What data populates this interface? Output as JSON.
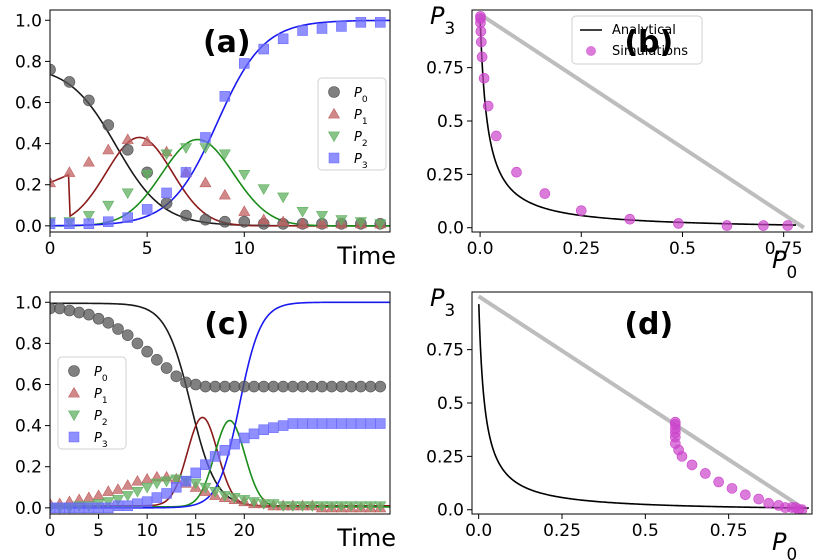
{
  "chart_data": [
    {
      "id": "a",
      "type": "line",
      "panel_label": "(a)",
      "xlabel": "Time",
      "xlim": [
        0,
        17.5
      ],
      "ylim": [
        -0.03,
        1.05
      ],
      "xticks": [
        0,
        5,
        10
      ],
      "xtick_labels": [
        "0",
        "5",
        "10"
      ],
      "yticks": [
        0,
        0.2,
        0.4,
        0.6,
        0.8,
        1.0
      ],
      "ytick_labels": [
        "0.0",
        "0.2",
        "0.4",
        "0.6",
        "0.8",
        "1.0"
      ],
      "legend": {
        "placement": "center-right",
        "entries": [
          "P0",
          "P1",
          "P2",
          "P3"
        ]
      },
      "series": [
        {
          "name": "P0",
          "marker": "circle",
          "color": "#555555",
          "line_color": "#1a1a1a",
          "x": [
            0,
            1,
            2,
            3,
            4,
            5,
            6,
            7,
            8,
            9,
            10,
            11,
            12,
            13,
            14,
            15,
            16,
            17
          ],
          "y": [
            0.76,
            0.7,
            0.61,
            0.49,
            0.37,
            0.26,
            0.11,
            0.05,
            0.03,
            0.02,
            0.02,
            0.01,
            0.01,
            0.01,
            0.01,
            0.01,
            0.01,
            0.01
          ]
        },
        {
          "name": "P1",
          "marker": "triangle-up",
          "color": "#c06060",
          "line_color": "#8b1a1a",
          "x": [
            0,
            1,
            2,
            3,
            4,
            5,
            6,
            7,
            8,
            9,
            10,
            11,
            12,
            13,
            14,
            15,
            16,
            17
          ],
          "y": [
            0.21,
            0.26,
            0.31,
            0.37,
            0.42,
            0.41,
            0.36,
            0.26,
            0.21,
            0.15,
            0.07,
            0.03,
            0.02,
            0.01,
            0.01,
            0.01,
            0.01,
            0.01
          ]
        },
        {
          "name": "P2",
          "marker": "triangle-down",
          "color": "#60b060",
          "line_color": "#1a8c1a",
          "x": [
            0,
            1,
            2,
            3,
            4,
            5,
            6,
            7,
            8,
            9,
            10,
            11,
            12,
            13,
            14,
            15,
            16,
            17
          ],
          "y": [
            0.02,
            0.02,
            0.05,
            0.1,
            0.16,
            0.25,
            0.35,
            0.38,
            0.38,
            0.35,
            0.25,
            0.18,
            0.14,
            0.07,
            0.05,
            0.03,
            0.02,
            0.01
          ]
        },
        {
          "name": "P3",
          "marker": "square",
          "color": "#6a6aff",
          "line_color": "#1a1aee",
          "x": [
            0,
            1,
            2,
            3,
            4,
            5,
            6,
            7,
            8,
            9,
            10,
            11,
            12,
            13,
            14,
            15,
            16,
            17
          ],
          "y": [
            0.01,
            0.01,
            0.01,
            0.02,
            0.04,
            0.08,
            0.16,
            0.26,
            0.43,
            0.63,
            0.79,
            0.86,
            0.91,
            0.95,
            0.96,
            0.97,
            0.99,
            0.99
          ]
        }
      ]
    },
    {
      "id": "b",
      "type": "scatter",
      "panel_label": "(b)",
      "xlabel": "P0",
      "ylabel": "P3",
      "xlim": [
        -0.02,
        0.82
      ],
      "ylim": [
        -0.02,
        1.02
      ],
      "xticks": [
        0,
        0.25,
        0.5,
        0.75
      ],
      "xtick_labels": [
        "0.0",
        "0.25",
        "0.5",
        "0.75"
      ],
      "yticks": [
        0,
        0.25,
        0.5,
        0.75
      ],
      "ytick_labels": [
        "0.0",
        "0.25",
        "0.5",
        "0.75"
      ],
      "legend": {
        "placement": "top-center",
        "entries": [
          "Analytical",
          "Simulations"
        ]
      },
      "reference_line": {
        "x": [
          0,
          0.8
        ],
        "y": [
          1.0,
          0.0
        ],
        "color": "#bdbdbd"
      },
      "series": [
        {
          "name": "Simulations",
          "marker": "circle",
          "color": "#cc44cc",
          "x": [
            0.76,
            0.7,
            0.61,
            0.49,
            0.37,
            0.25,
            0.16,
            0.09,
            0.04,
            0.02,
            0.01,
            0.005,
            0.003,
            0.002,
            0.001,
            0.001,
            0.001
          ],
          "y": [
            0.01,
            0.01,
            0.01,
            0.02,
            0.04,
            0.08,
            0.16,
            0.26,
            0.43,
            0.57,
            0.7,
            0.8,
            0.87,
            0.92,
            0.96,
            0.98,
            0.99
          ]
        }
      ]
    },
    {
      "id": "c",
      "type": "line",
      "panel_label": "(c)",
      "xlabel": "Time",
      "xlim": [
        0,
        35
      ],
      "ylim": [
        -0.03,
        1.05
      ],
      "xticks": [
        0,
        5,
        10,
        15,
        20
      ],
      "xtick_labels": [
        "0",
        "5",
        "10",
        "15",
        "20"
      ],
      "yticks": [
        0,
        0.2,
        0.4,
        0.6,
        0.8,
        1.0
      ],
      "ytick_labels": [
        "0.0",
        "0.2",
        "0.4",
        "0.6",
        "0.8",
        "1.0"
      ],
      "legend": {
        "placement": "center-left",
        "entries": [
          "P0",
          "P1",
          "P2",
          "P3"
        ]
      },
      "series": [
        {
          "name": "P0",
          "marker": "circle",
          "color": "#555555",
          "line_color": "#1a1a1a",
          "x": [
            0,
            1,
            2,
            3,
            4,
            5,
            6,
            7,
            8,
            9,
            10,
            11,
            12,
            13,
            14,
            15,
            16,
            17,
            18,
            19,
            20,
            21,
            22,
            23,
            24,
            25,
            26,
            27,
            28,
            29,
            30,
            31,
            32,
            33,
            34
          ],
          "y": [
            0.97,
            0.97,
            0.96,
            0.95,
            0.94,
            0.92,
            0.9,
            0.87,
            0.84,
            0.8,
            0.76,
            0.72,
            0.68,
            0.64,
            0.61,
            0.6,
            0.59,
            0.59,
            0.59,
            0.59,
            0.59,
            0.59,
            0.59,
            0.59,
            0.59,
            0.59,
            0.59,
            0.59,
            0.59,
            0.59,
            0.59,
            0.59,
            0.59,
            0.59,
            0.59
          ]
        },
        {
          "name": "P1",
          "marker": "triangle-up",
          "color": "#c06060",
          "line_color": "#8b1a1a",
          "x": [
            0,
            1,
            2,
            3,
            4,
            5,
            6,
            7,
            8,
            9,
            10,
            11,
            12,
            13,
            14,
            15,
            16,
            17,
            18,
            19,
            20,
            21,
            22,
            23,
            24,
            25,
            26,
            27,
            28,
            29,
            30,
            31,
            32,
            33,
            34
          ],
          "y": [
            0.02,
            0.02,
            0.03,
            0.04,
            0.05,
            0.06,
            0.08,
            0.09,
            0.11,
            0.13,
            0.14,
            0.15,
            0.15,
            0.14,
            0.12,
            0.1,
            0.08,
            0.06,
            0.05,
            0.04,
            0.03,
            0.02,
            0.02,
            0.01,
            0.01,
            0.01,
            0.01,
            0.01,
            0.0,
            0.0,
            0.0,
            0.0,
            0.0,
            0.0,
            0.0
          ]
        },
        {
          "name": "P2",
          "marker": "triangle-down",
          "color": "#60b060",
          "line_color": "#1a8c1a",
          "x": [
            0,
            1,
            2,
            3,
            4,
            5,
            6,
            7,
            8,
            9,
            10,
            11,
            12,
            13,
            14,
            15,
            16,
            17,
            18,
            19,
            20,
            21,
            22,
            23,
            24,
            25,
            26,
            27,
            28,
            29,
            30,
            31,
            32,
            33,
            34
          ],
          "y": [
            0.0,
            0.0,
            0.0,
            0.01,
            0.01,
            0.02,
            0.03,
            0.04,
            0.06,
            0.08,
            0.1,
            0.12,
            0.13,
            0.14,
            0.13,
            0.12,
            0.1,
            0.08,
            0.06,
            0.05,
            0.04,
            0.03,
            0.02,
            0.02,
            0.01,
            0.01,
            0.01,
            0.01,
            0.01,
            0.01,
            0.01,
            0.01,
            0.01,
            0.01,
            0.01
          ]
        },
        {
          "name": "P3",
          "marker": "square",
          "color": "#6a6aff",
          "line_color": "#1a1aee",
          "x": [
            0,
            1,
            2,
            3,
            4,
            5,
            6,
            7,
            8,
            9,
            10,
            11,
            12,
            13,
            14,
            15,
            16,
            17,
            18,
            19,
            20,
            21,
            22,
            23,
            24,
            25,
            26,
            27,
            28,
            29,
            30,
            31,
            32,
            33,
            34
          ],
          "y": [
            0.0,
            0.0,
            0.0,
            0.0,
            0.0,
            0.0,
            0.0,
            0.01,
            0.01,
            0.02,
            0.03,
            0.05,
            0.07,
            0.1,
            0.13,
            0.17,
            0.21,
            0.25,
            0.28,
            0.31,
            0.34,
            0.36,
            0.38,
            0.39,
            0.4,
            0.41,
            0.41,
            0.41,
            0.41,
            0.41,
            0.41,
            0.41,
            0.41,
            0.41,
            0.41
          ]
        }
      ]
    },
    {
      "id": "d",
      "type": "scatter",
      "panel_label": "(d)",
      "xlabel": "P0",
      "ylabel": "P3",
      "xlim": [
        -0.02,
        1.0
      ],
      "ylim": [
        -0.02,
        1.02
      ],
      "xticks": [
        0,
        0.25,
        0.5,
        0.75
      ],
      "xtick_labels": [
        "0.0",
        "0.25",
        "0.5",
        "0.75"
      ],
      "yticks": [
        0,
        0.25,
        0.5,
        0.75
      ],
      "ytick_labels": [
        "0.0",
        "0.25",
        "0.5",
        "0.75"
      ],
      "reference_line": {
        "x": [
          0,
          0.98
        ],
        "y": [
          1.0,
          0.0
        ],
        "color": "#bdbdbd"
      },
      "series": [
        {
          "name": "Simulations",
          "marker": "circle",
          "color": "#cc44cc",
          "x": [
            0.97,
            0.96,
            0.95,
            0.94,
            0.92,
            0.9,
            0.87,
            0.84,
            0.8,
            0.76,
            0.72,
            0.68,
            0.64,
            0.61,
            0.6,
            0.59,
            0.59,
            0.59,
            0.59,
            0.59,
            0.59
          ],
          "y": [
            0.0,
            0.0,
            0.01,
            0.01,
            0.01,
            0.02,
            0.03,
            0.05,
            0.07,
            0.1,
            0.13,
            0.17,
            0.21,
            0.25,
            0.28,
            0.31,
            0.34,
            0.36,
            0.38,
            0.4,
            0.41
          ]
        }
      ]
    }
  ]
}
